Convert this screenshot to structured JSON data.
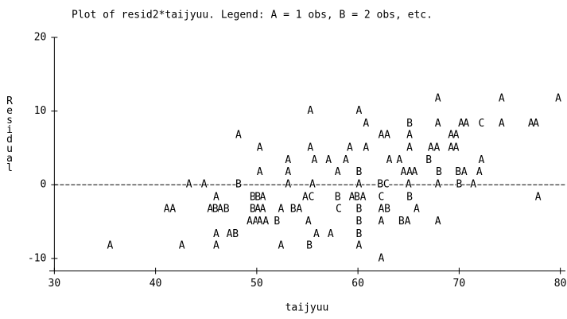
{
  "chart_data": {
    "type": "scatter",
    "title": "Plot of resid2*taijyuu.  Legend: A = 1 obs, B = 2 obs, etc.",
    "x_label": "taijyuu",
    "y_label": "Residual",
    "xlim": [
      29.5,
      80.5
    ],
    "ylim": [
      -11.7,
      20
    ],
    "xticks": [
      30,
      40,
      50,
      60,
      70,
      80
    ],
    "yticks": [
      -10,
      0,
      10,
      20
    ],
    "reference_line": 0,
    "series": [
      {
        "name": "A",
        "color": "#000000",
        "x": [
          67.9,
          74.2,
          79.8,
          55.3,
          60.1,
          60.8,
          67.9,
          70.2,
          70.7,
          74.2,
          77.1,
          77.6,
          48.2,
          62.3,
          62.9,
          65.1,
          69.2,
          69.7,
          50.3,
          55.3,
          59.2,
          60.8,
          65.1,
          67.2,
          67.8,
          69.2,
          69.7,
          53.1,
          55.7,
          57.1,
          58.8,
          63.1,
          64.1,
          72.2,
          50.3,
          53.1,
          58.0,
          64.5,
          65.1,
          65.6,
          70.5,
          72.0,
          43.3,
          44.8,
          53.1,
          55.5,
          60.1,
          65.0,
          67.9,
          71.4,
          46.0,
          50.6,
          54.8,
          59.4,
          60.5,
          77.8,
          41.1,
          41.7,
          45.4,
          46.4,
          50.1,
          50.6,
          52.4,
          54.2,
          62.3,
          65.8,
          49.3,
          49.9,
          50.3,
          50.9,
          55.1,
          62.3,
          64.9,
          67.9,
          46.0,
          47.3,
          55.9,
          57.3,
          35.5,
          42.6,
          46.0,
          52.4,
          60.1,
          62.3
        ],
        "values": [
          11.7,
          11.7,
          11.7,
          10,
          10,
          8.3,
          8.3,
          8.3,
          8.3,
          8.3,
          8.3,
          8.3,
          6.7,
          6.7,
          6.7,
          6.7,
          6.7,
          6.7,
          5,
          5,
          5,
          5,
          5,
          5,
          5,
          5,
          5,
          3.3,
          3.3,
          3.3,
          3.3,
          3.3,
          3.3,
          3.3,
          1.7,
          1.7,
          1.7,
          1.7,
          1.7,
          1.7,
          1.7,
          1.7,
          0,
          0,
          0,
          0,
          0,
          0,
          0,
          0,
          -1.7,
          -1.7,
          -1.7,
          -1.7,
          -1.7,
          -1.7,
          -3.3,
          -3.3,
          -3.3,
          -3.3,
          -3.3,
          -3.3,
          -3.3,
          -3.3,
          -3.3,
          -3.3,
          -5,
          -5,
          -5,
          -5,
          -5,
          -5,
          -5,
          -5,
          -6.7,
          -6.7,
          -6.7,
          -6.7,
          -8.3,
          -8.3,
          -8.3,
          -8.3,
          -8.3,
          -10
        ]
      },
      {
        "name": "B",
        "color": "#000000",
        "x": [
          65.1,
          67.0,
          60.1,
          68.0,
          69.9,
          48.2,
          62.2,
          70.0,
          49.6,
          50.1,
          58.0,
          59.9,
          65.1,
          45.9,
          47.0,
          49.6,
          53.6,
          60.1,
          62.9,
          52.0,
          60.1,
          64.3,
          47.9,
          60.1,
          55.2
        ],
        "values": [
          8.3,
          3.3,
          1.7,
          1.7,
          1.7,
          0,
          0,
          0,
          -1.7,
          -1.7,
          -1.7,
          -1.7,
          -1.7,
          -3.3,
          -3.3,
          -3.3,
          -3.3,
          -3.3,
          -3.3,
          -5,
          -5,
          -5,
          -6.7,
          -6.7,
          -8.3
        ]
      },
      {
        "name": "C",
        "color": "#000000",
        "x": [
          72.2,
          62.8,
          55.4,
          62.3,
          58.1
        ],
        "values": [
          8.3,
          0,
          -1.7,
          -1.7,
          -3.3
        ]
      }
    ]
  }
}
